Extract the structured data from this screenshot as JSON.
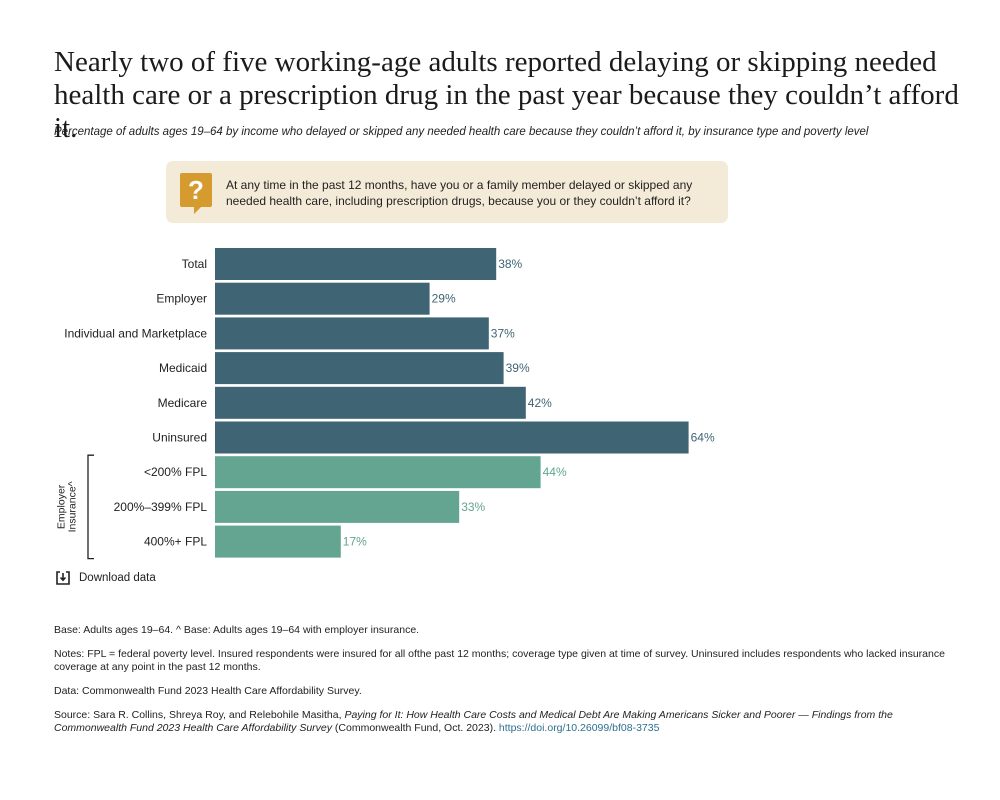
{
  "header": {
    "title": "Nearly two of five working-age adults reported delaying or skipping needed health care or a prescription drug in the past year because they couldn’t afford it.",
    "subtitle": "Percentage of adults ages 19–64 by income who delayed or skipped any needed health care because they couldn’t afford it, by insurance type and poverty level"
  },
  "question": {
    "icon": "question-mark-icon",
    "text": "At any time in the past 12 months, have you or a family member delayed or skipped any needed health care, including prescription drugs, because you or they couldn’t afford it?"
  },
  "chart_data": {
    "type": "bar",
    "orientation": "horizontal",
    "categories": [
      "Total",
      "Employer",
      "Individual and Marketplace",
      "Medicaid",
      "Medicare",
      "Uninsured",
      "<200% FPL",
      "200%–399% FPL",
      "400%+ FPL"
    ],
    "values": [
      38,
      29,
      37,
      39,
      42,
      64,
      44,
      33,
      17
    ],
    "data_labels": [
      "38%",
      "29%",
      "37%",
      "39%",
      "42%",
      "64%",
      "44%",
      "33%",
      "17%"
    ],
    "value_suffix": "%",
    "xlim": [
      0,
      100
    ],
    "groups": [
      {
        "name": "",
        "start": 0,
        "end": 5,
        "color": "#3f6474"
      },
      {
        "name": "Employer Insurance^",
        "start": 6,
        "end": 8,
        "color": "#63a590"
      }
    ],
    "grid": false,
    "xlabel": "",
    "ylabel": ""
  },
  "download": {
    "label": "Download data",
    "icon": "download-icon"
  },
  "notes": {
    "base": "Base: Adults ages 19–64. ^ Base: Adults ages 19–64 with employer insurance.",
    "notes": "Notes: FPL = federal poverty level. Insured respondents were insured for all ofthe past 12 months; coverage type given at time of survey. Uninsured includes respondents who lacked insurance coverage at any point in the past 12 months.",
    "data": "Data: Commonwealth Fund 2023 Health Care Affordability Survey.",
    "source_prefix": "Source: Sara R. Collins, Shreya Roy, and Relebohile Masitha, ",
    "source_title": "Paying for It: How Health Care Costs and Medical Debt Are Making Americans Sicker and Poorer — Findings from the Commonwealth Fund 2023 Health Care Affordability Survey",
    "source_suffix": " (Commonwealth Fund, Oct. 2023). ",
    "source_link": "https://doi.org/10.26099/bf08-3735"
  }
}
